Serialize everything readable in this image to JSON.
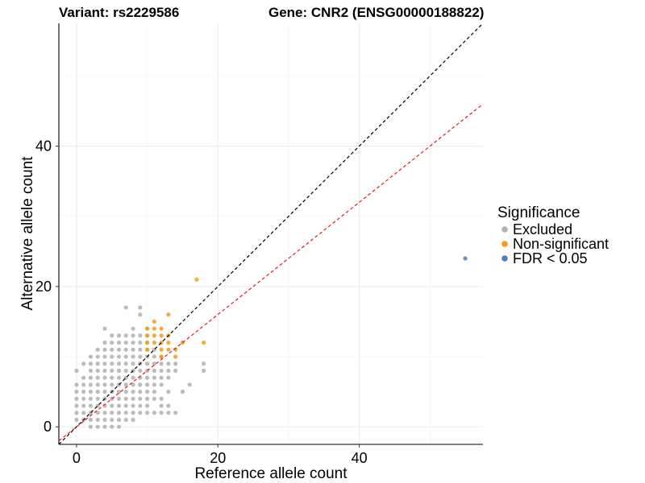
{
  "chart_data": {
    "type": "scatter",
    "title_left": "Variant: rs2229586",
    "title_right": "Gene: CNR2 (ENSG00000188822)",
    "xlabel": "Reference allele count",
    "ylabel": "Alternative allele count",
    "xlim": [
      -2.5,
      57.5
    ],
    "ylim": [
      -2.5,
      57.5
    ],
    "xticks": [
      0,
      20,
      40
    ],
    "yticks": [
      0,
      20,
      40
    ],
    "grid": true,
    "reference_lines": [
      {
        "name": "identity",
        "slope": 1.0,
        "intercept": 0,
        "color": "#000000",
        "dash": "dashed"
      },
      {
        "name": "fit",
        "slope": 0.8,
        "intercept": 0,
        "color": "#e41a1c",
        "dash": "dashed"
      }
    ],
    "legend": {
      "title": "Significance",
      "position": "right",
      "entries": [
        {
          "label": "Excluded",
          "color": "#b0b0b0"
        },
        {
          "label": "Non-significant",
          "color": "#f39c1a"
        },
        {
          "label": "FDR < 0.05",
          "color": "#4f7fb0"
        }
      ]
    },
    "series": [
      {
        "name": "Excluded",
        "color": "#b0b0b0",
        "points": [
          [
            0,
            1
          ],
          [
            0,
            2
          ],
          [
            0,
            3
          ],
          [
            0,
            4
          ],
          [
            0,
            5
          ],
          [
            0,
            6
          ],
          [
            0,
            8
          ],
          [
            1,
            1
          ],
          [
            1,
            2
          ],
          [
            1,
            3
          ],
          [
            1,
            4
          ],
          [
            1,
            5
          ],
          [
            1,
            6
          ],
          [
            1,
            7
          ],
          [
            1,
            9
          ],
          [
            2,
            0
          ],
          [
            2,
            1
          ],
          [
            2,
            2
          ],
          [
            2,
            3
          ],
          [
            2,
            4
          ],
          [
            2,
            5
          ],
          [
            2,
            6
          ],
          [
            2,
            7
          ],
          [
            2,
            8
          ],
          [
            2,
            9
          ],
          [
            2,
            10
          ],
          [
            3,
            0
          ],
          [
            3,
            1
          ],
          [
            3,
            2
          ],
          [
            3,
            3
          ],
          [
            3,
            4
          ],
          [
            3,
            5
          ],
          [
            3,
            6
          ],
          [
            3,
            7
          ],
          [
            3,
            8
          ],
          [
            3,
            9
          ],
          [
            3,
            10
          ],
          [
            3,
            11
          ],
          [
            4,
            0
          ],
          [
            4,
            1
          ],
          [
            4,
            2
          ],
          [
            4,
            3
          ],
          [
            4,
            4
          ],
          [
            4,
            5
          ],
          [
            4,
            6
          ],
          [
            4,
            7
          ],
          [
            4,
            8
          ],
          [
            4,
            9
          ],
          [
            4,
            10
          ],
          [
            4,
            11
          ],
          [
            4,
            12
          ],
          [
            5,
            0
          ],
          [
            5,
            1
          ],
          [
            5,
            2
          ],
          [
            5,
            3
          ],
          [
            5,
            4
          ],
          [
            5,
            5
          ],
          [
            5,
            6
          ],
          [
            5,
            7
          ],
          [
            5,
            8
          ],
          [
            5,
            9
          ],
          [
            5,
            10
          ],
          [
            5,
            11
          ],
          [
            5,
            12
          ],
          [
            5,
            13
          ],
          [
            6,
            0
          ],
          [
            6,
            1
          ],
          [
            6,
            2
          ],
          [
            6,
            3
          ],
          [
            6,
            4
          ],
          [
            6,
            5
          ],
          [
            6,
            6
          ],
          [
            6,
            7
          ],
          [
            6,
            8
          ],
          [
            6,
            9
          ],
          [
            6,
            10
          ],
          [
            6,
            11
          ],
          [
            6,
            12
          ],
          [
            7,
            1
          ],
          [
            7,
            2
          ],
          [
            7,
            3
          ],
          [
            7,
            4
          ],
          [
            7,
            5
          ],
          [
            7,
            6
          ],
          [
            7,
            7
          ],
          [
            7,
            8
          ],
          [
            7,
            9
          ],
          [
            7,
            10
          ],
          [
            7,
            11
          ],
          [
            7,
            12
          ],
          [
            7,
            13
          ],
          [
            8,
            1
          ],
          [
            8,
            2
          ],
          [
            8,
            3
          ],
          [
            8,
            4
          ],
          [
            8,
            5
          ],
          [
            8,
            6
          ],
          [
            8,
            7
          ],
          [
            8,
            8
          ],
          [
            8,
            9
          ],
          [
            8,
            10
          ],
          [
            8,
            11
          ],
          [
            8,
            12
          ],
          [
            8,
            13
          ],
          [
            9,
            2
          ],
          [
            9,
            3
          ],
          [
            9,
            4
          ],
          [
            9,
            5
          ],
          [
            9,
            6
          ],
          [
            9,
            7
          ],
          [
            9,
            8
          ],
          [
            9,
            9
          ],
          [
            9,
            10
          ],
          [
            9,
            11
          ],
          [
            9,
            12
          ],
          [
            9,
            13
          ],
          [
            10,
            2
          ],
          [
            10,
            3
          ],
          [
            10,
            4
          ],
          [
            10,
            5
          ],
          [
            10,
            6
          ],
          [
            10,
            7
          ],
          [
            10,
            8
          ],
          [
            10,
            9
          ],
          [
            10,
            10
          ],
          [
            10,
            11
          ],
          [
            10,
            12
          ],
          [
            10,
            13
          ],
          [
            11,
            2
          ],
          [
            11,
            4
          ],
          [
            11,
            5
          ],
          [
            11,
            6
          ],
          [
            11,
            7
          ],
          [
            11,
            8
          ],
          [
            11,
            9
          ],
          [
            11,
            10
          ],
          [
            11,
            11
          ],
          [
            12,
            3
          ],
          [
            12,
            4
          ],
          [
            12,
            6
          ],
          [
            12,
            7
          ],
          [
            12,
            8
          ],
          [
            12,
            9
          ],
          [
            12,
            10
          ],
          [
            13,
            3
          ],
          [
            13,
            5
          ],
          [
            13,
            7
          ],
          [
            13,
            8
          ],
          [
            13,
            9
          ],
          [
            7,
            17
          ],
          [
            9,
            16
          ],
          [
            9,
            17
          ],
          [
            10,
            14
          ],
          [
            4,
            14
          ],
          [
            6,
            13
          ],
          [
            8,
            14
          ],
          [
            12,
            2
          ],
          [
            13,
            2
          ],
          [
            14,
            2
          ],
          [
            15,
            5
          ],
          [
            16,
            6
          ],
          [
            18,
            8
          ],
          [
            18,
            9
          ],
          [
            14,
            9
          ],
          [
            14,
            8
          ]
        ]
      },
      {
        "name": "Non-significant",
        "color": "#f39c1a",
        "points": [
          [
            10,
            11
          ],
          [
            10,
            12
          ],
          [
            10,
            13
          ],
          [
            10,
            14
          ],
          [
            11,
            12
          ],
          [
            11,
            13
          ],
          [
            11,
            14
          ],
          [
            11,
            15
          ],
          [
            12,
            10
          ],
          [
            12,
            11
          ],
          [
            12,
            12
          ],
          [
            12,
            13
          ],
          [
            12,
            14
          ],
          [
            13,
            11
          ],
          [
            13,
            12
          ],
          [
            13,
            13
          ],
          [
            13,
            16
          ],
          [
            14,
            10
          ],
          [
            14,
            11
          ],
          [
            15,
            12
          ],
          [
            17,
            21
          ],
          [
            18,
            12
          ]
        ]
      },
      {
        "name": "FDR < 0.05",
        "color": "#4f7fb0",
        "points": [
          [
            55,
            24
          ]
        ]
      }
    ]
  }
}
